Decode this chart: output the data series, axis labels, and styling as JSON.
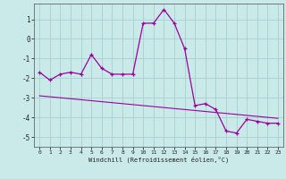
{
  "xlabel": "Windchill (Refroidissement éolien,°C)",
  "x_values": [
    0,
    1,
    2,
    3,
    4,
    5,
    6,
    7,
    8,
    9,
    10,
    11,
    12,
    13,
    14,
    15,
    16,
    17,
    18,
    19,
    20,
    21,
    22,
    23
  ],
  "y_main": [
    -1.7,
    -2.1,
    -1.8,
    -1.7,
    -1.8,
    -0.8,
    -1.5,
    -1.8,
    -1.8,
    -1.8,
    0.8,
    0.8,
    1.5,
    0.8,
    -0.5,
    -3.4,
    -3.3,
    -3.6,
    -4.7,
    -4.8,
    -4.1,
    -4.2,
    -4.3,
    -4.3
  ],
  "y_trend": [
    -2.9,
    -2.95,
    -3.0,
    -3.05,
    -3.1,
    -3.15,
    -3.2,
    -3.25,
    -3.3,
    -3.35,
    -3.4,
    -3.45,
    -3.5,
    -3.55,
    -3.6,
    -3.65,
    -3.7,
    -3.75,
    -3.8,
    -3.85,
    -3.9,
    -3.95,
    -4.0,
    -4.05
  ],
  "line_color": "#9b009b",
  "bg_color": "#caeaea",
  "grid_color": "#aad4d4",
  "ylim": [
    -5.5,
    1.8
  ],
  "yticks": [
    -5,
    -4,
    -3,
    -2,
    -1,
    0,
    1
  ],
  "xticks": [
    0,
    1,
    2,
    3,
    4,
    5,
    6,
    7,
    8,
    9,
    10,
    11,
    12,
    13,
    14,
    15,
    16,
    17,
    18,
    19,
    20,
    21,
    22,
    23
  ]
}
